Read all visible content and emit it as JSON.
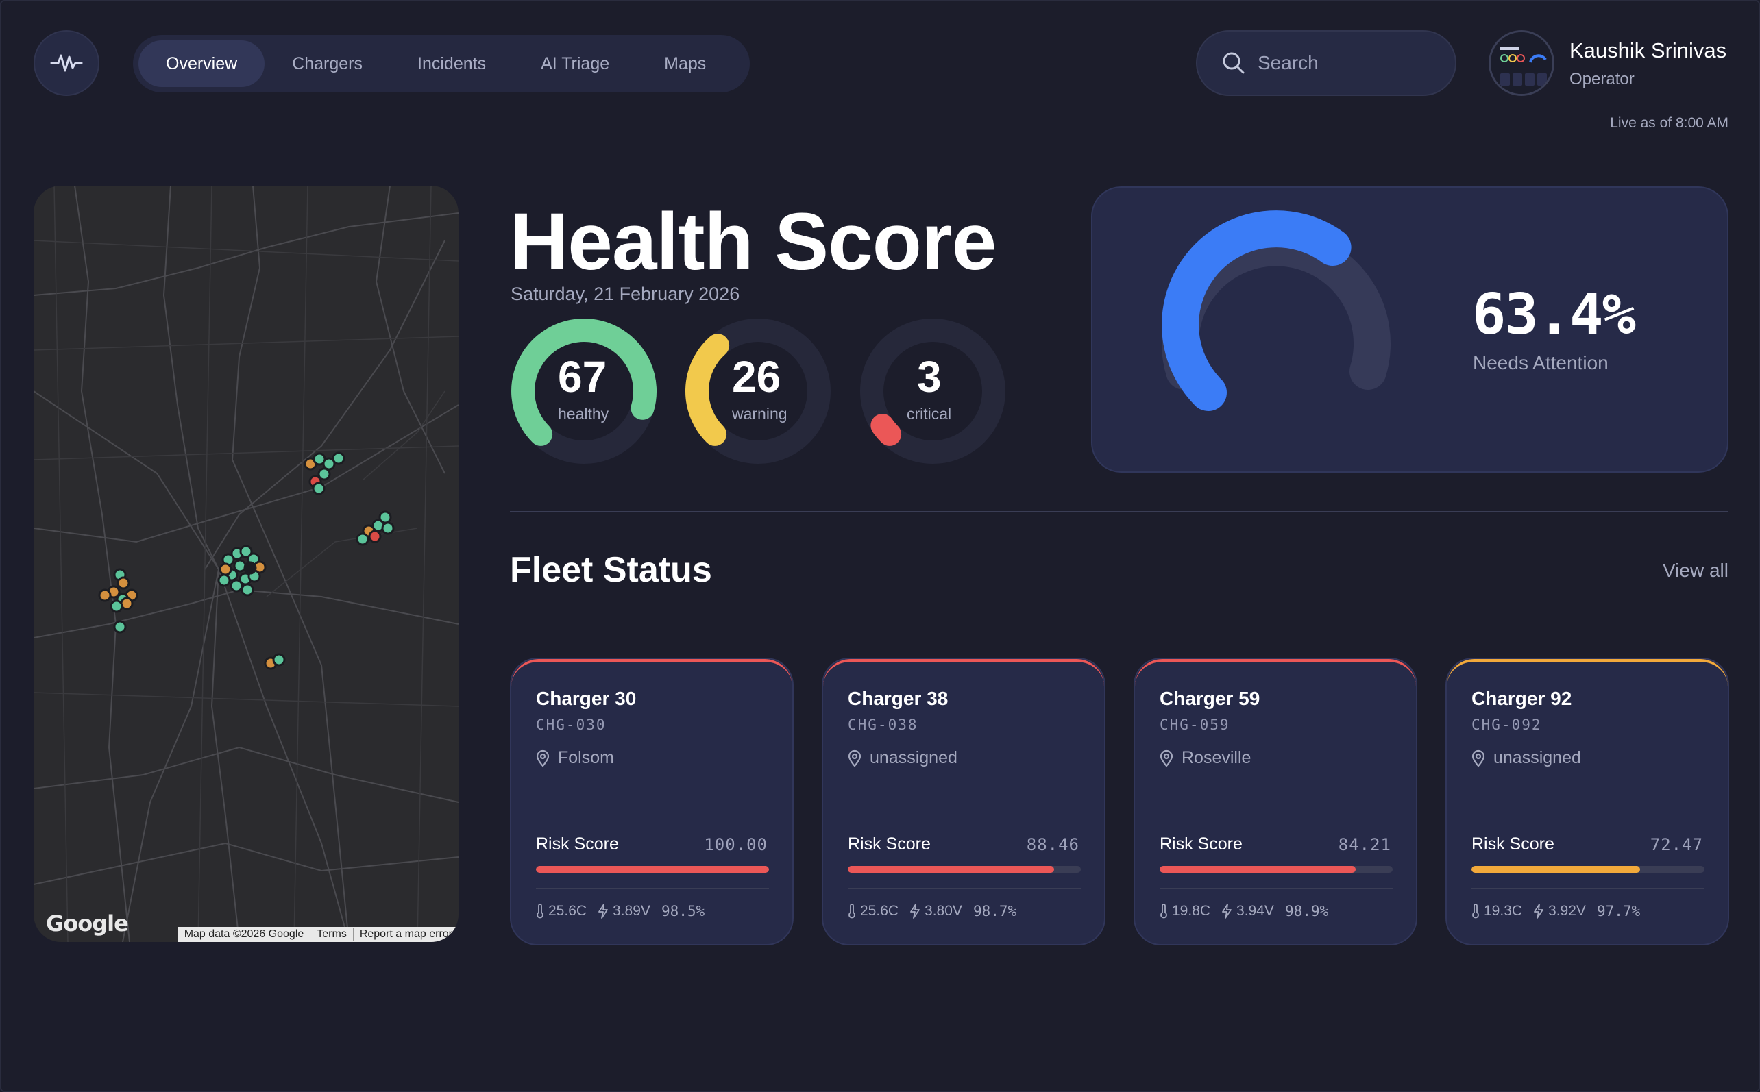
{
  "nav": {
    "tabs": [
      {
        "label": "Overview",
        "active": true
      },
      {
        "label": "Chargers",
        "active": false
      },
      {
        "label": "Incidents",
        "active": false
      },
      {
        "label": "AI Triage",
        "active": false
      },
      {
        "label": "Maps",
        "active": false
      }
    ]
  },
  "search": {
    "placeholder": "Search"
  },
  "user": {
    "name": "Kaushik Srinivas",
    "role": "Operator"
  },
  "live": "Live as of 8:00 AM",
  "map": {
    "logo": "Google",
    "attribution": [
      "Map data ©2026 Google",
      "Terms",
      "Report a map error"
    ]
  },
  "health": {
    "title": "Health Score",
    "date": "Saturday, 21 February 2026",
    "rings": [
      {
        "value": "67",
        "label": "healthy",
        "color": "#6fcf97",
        "fraction": 0.67
      },
      {
        "value": "26",
        "label": "warning",
        "color": "#f2c94c",
        "fraction": 0.26
      },
      {
        "value": "3",
        "label": "critical",
        "color": "#eb5757",
        "fraction": 0.03
      }
    ]
  },
  "attention": {
    "value": "63.4%",
    "label": "Needs Attention",
    "fraction": 0.634,
    "color": "#3b7cf6"
  },
  "fleet": {
    "title": "Fleet Status",
    "view_all": "View all",
    "risk_label": "Risk Score",
    "cards": [
      {
        "name": "Charger 30",
        "code": "CHG-030",
        "location": "Folsom",
        "risk": "100.00",
        "risk_value": 100.0,
        "status_color": "#eb5757",
        "temp": "25.6C",
        "voltage": "3.89V",
        "soc": "98.5%"
      },
      {
        "name": "Charger 38",
        "code": "CHG-038",
        "location": "unassigned",
        "risk": "88.46",
        "risk_value": 88.46,
        "status_color": "#eb5757",
        "temp": "25.6C",
        "voltage": "3.80V",
        "soc": "98.7%"
      },
      {
        "name": "Charger 59",
        "code": "CHG-059",
        "location": "Roseville",
        "risk": "84.21",
        "risk_value": 84.21,
        "status_color": "#eb5757",
        "temp": "19.8C",
        "voltage": "3.94V",
        "soc": "98.9%"
      },
      {
        "name": "Charger 92",
        "code": "CHG-092",
        "location": "unassigned",
        "risk": "72.47",
        "risk_value": 72.47,
        "status_color": "#f2a93b",
        "temp": "19.3C",
        "voltage": "3.92V",
        "soc": "97.7%"
      }
    ]
  }
}
